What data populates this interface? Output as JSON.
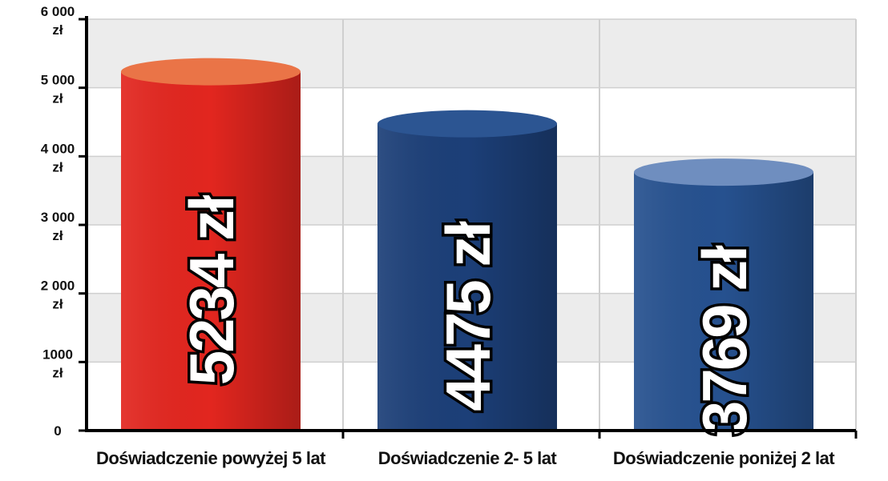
{
  "chart_data": {
    "type": "bar",
    "categories": [
      "Doświadczenie powyżej 5 lat",
      "Doświadczenie 2- 5 lat",
      "Doświadczenie poniżej 2 lat"
    ],
    "values": [
      5234,
      4475,
      3769
    ],
    "value_labels": [
      "5234 zł",
      "4475 zł",
      "3769 zł"
    ],
    "colors": [
      "#e2261f",
      "#1c3f78",
      "#26518f"
    ],
    "top_colors": [
      "#ea7447",
      "#2c5592",
      "#6f8ebf"
    ],
    "ylim": [
      0,
      6000
    ],
    "yticks": [
      0,
      {
        "value": 1000,
        "label": "1000 zł"
      },
      {
        "value": 2000,
        "label": "2 000 zł"
      },
      {
        "value": 3000,
        "label": "3 000 zł"
      },
      {
        "value": 4000,
        "label": "4 000 zł"
      },
      {
        "value": 5000,
        "label": "5 000 zł"
      },
      {
        "value": 6000,
        "label": "6 000 zł"
      }
    ],
    "grid": true
  }
}
